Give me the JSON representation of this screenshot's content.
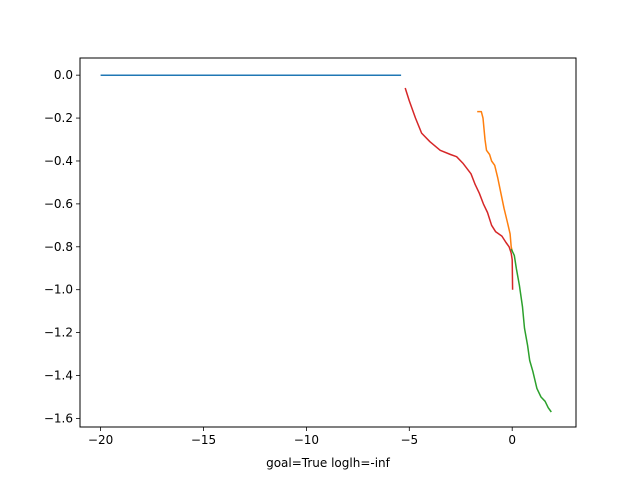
{
  "chart_data": {
    "type": "line",
    "xlabel": "goal=True loglh=-inf",
    "ylabel": "",
    "title": "",
    "xlim": [
      -21,
      3.1
    ],
    "ylim": [
      -1.64,
      0.08
    ],
    "xticks": [
      -20,
      -15,
      -10,
      -5,
      0
    ],
    "xtick_labels": [
      "−20",
      "−15",
      "−10",
      "−5",
      "0"
    ],
    "yticks": [
      0.0,
      -0.2,
      -0.4,
      -0.6,
      -0.8,
      -1.0,
      -1.2,
      -1.4,
      -1.6
    ],
    "ytick_labels": [
      "0.0",
      "−0.2",
      "−0.4",
      "−0.6",
      "−0.8",
      "−1.0",
      "−1.2",
      "−1.4",
      "−1.6"
    ],
    "grid": false,
    "series": [
      {
        "color": "#1f77b4",
        "points": [
          [
            -20.0,
            0.0
          ],
          [
            -5.4,
            0.0
          ]
        ]
      },
      {
        "color": "#ff7f0e",
        "points": [
          [
            -1.7,
            -0.17
          ],
          [
            -1.5,
            -0.17
          ],
          [
            -1.42,
            -0.2
          ],
          [
            -1.32,
            -0.3
          ],
          [
            -1.25,
            -0.35
          ],
          [
            -1.1,
            -0.37
          ],
          [
            -1.0,
            -0.4
          ],
          [
            -0.85,
            -0.42
          ],
          [
            -0.7,
            -0.48
          ],
          [
            -0.55,
            -0.55
          ],
          [
            -0.4,
            -0.62
          ],
          [
            -0.25,
            -0.68
          ],
          [
            -0.15,
            -0.72
          ],
          [
            -0.1,
            -0.74
          ],
          [
            -0.05,
            -0.8
          ],
          [
            0.0,
            -0.82
          ]
        ]
      },
      {
        "color": "#2ca02c",
        "points": [
          [
            -0.05,
            -0.81
          ],
          [
            0.1,
            -0.84
          ],
          [
            0.2,
            -0.9
          ],
          [
            0.35,
            -0.98
          ],
          [
            0.5,
            -1.08
          ],
          [
            0.6,
            -1.18
          ],
          [
            0.75,
            -1.26
          ],
          [
            0.85,
            -1.33
          ],
          [
            1.0,
            -1.38
          ],
          [
            1.2,
            -1.46
          ],
          [
            1.4,
            -1.5
          ],
          [
            1.6,
            -1.52
          ],
          [
            1.75,
            -1.55
          ],
          [
            1.9,
            -1.57
          ]
        ]
      },
      {
        "color": "#d62728",
        "points": [
          [
            -5.2,
            -0.06
          ],
          [
            -5.0,
            -0.12
          ],
          [
            -4.7,
            -0.2
          ],
          [
            -4.4,
            -0.27
          ],
          [
            -4.0,
            -0.31
          ],
          [
            -3.5,
            -0.35
          ],
          [
            -3.0,
            -0.37
          ],
          [
            -2.7,
            -0.38
          ],
          [
            -2.4,
            -0.41
          ],
          [
            -2.0,
            -0.46
          ],
          [
            -1.8,
            -0.51
          ],
          [
            -1.6,
            -0.55
          ],
          [
            -1.4,
            -0.6
          ],
          [
            -1.2,
            -0.64
          ],
          [
            -1.0,
            -0.7
          ],
          [
            -0.8,
            -0.73
          ],
          [
            -0.5,
            -0.75
          ],
          [
            -0.3,
            -0.78
          ],
          [
            -0.15,
            -0.8
          ],
          [
            -0.05,
            -0.83
          ],
          [
            0.0,
            -0.86
          ],
          [
            0.02,
            -1.0
          ]
        ]
      }
    ]
  }
}
